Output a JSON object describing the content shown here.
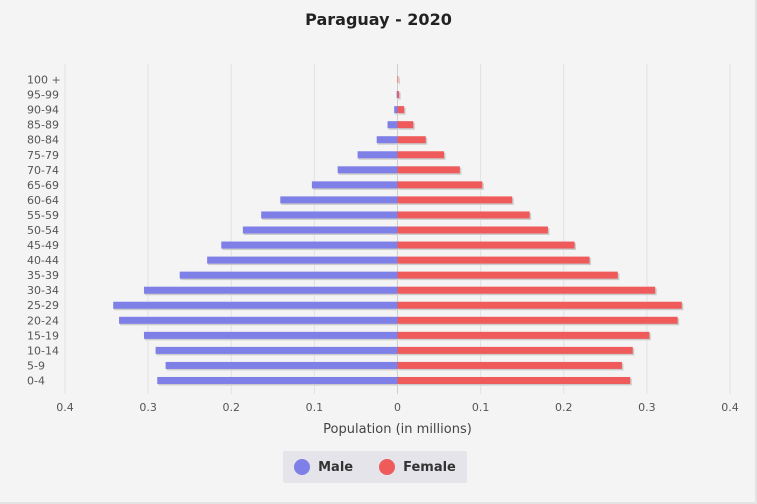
{
  "chart_data": {
    "type": "bar",
    "orientation": "horizontal-pyramid",
    "title": "Paraguay - 2020",
    "xlabel": "Population (in millions)",
    "xlim": [
      -0.4,
      0.4
    ],
    "x_ticks": [
      "0.4",
      "0.3",
      "0.2",
      "0.1",
      "0",
      "0.1",
      "0.2",
      "0.3",
      "0.4"
    ],
    "grid": true,
    "legend_position": "bottom-center",
    "categories": [
      "0-4",
      "5-9",
      "10-14",
      "15-19",
      "20-24",
      "25-29",
      "30-34",
      "35-39",
      "40-44",
      "45-49",
      "50-54",
      "55-59",
      "60-64",
      "65-69",
      "70-74",
      "75-79",
      "80-84",
      "85-89",
      "90-94",
      "95-99",
      "100 +"
    ],
    "series": [
      {
        "name": "Male",
        "color": "#7f7fe8",
        "values": [
          0.289,
          0.279,
          0.291,
          0.305,
          0.335,
          0.342,
          0.305,
          0.262,
          0.229,
          0.212,
          0.186,
          0.164,
          0.141,
          0.103,
          0.072,
          0.048,
          0.025,
          0.012,
          0.004,
          0.001,
          0.0
        ]
      },
      {
        "name": "Female",
        "color": "#ef5a5a",
        "values": [
          0.28,
          0.27,
          0.283,
          0.303,
          0.337,
          0.342,
          0.31,
          0.265,
          0.231,
          0.213,
          0.181,
          0.159,
          0.138,
          0.102,
          0.075,
          0.056,
          0.034,
          0.019,
          0.008,
          0.002,
          0.001
        ]
      }
    ]
  }
}
